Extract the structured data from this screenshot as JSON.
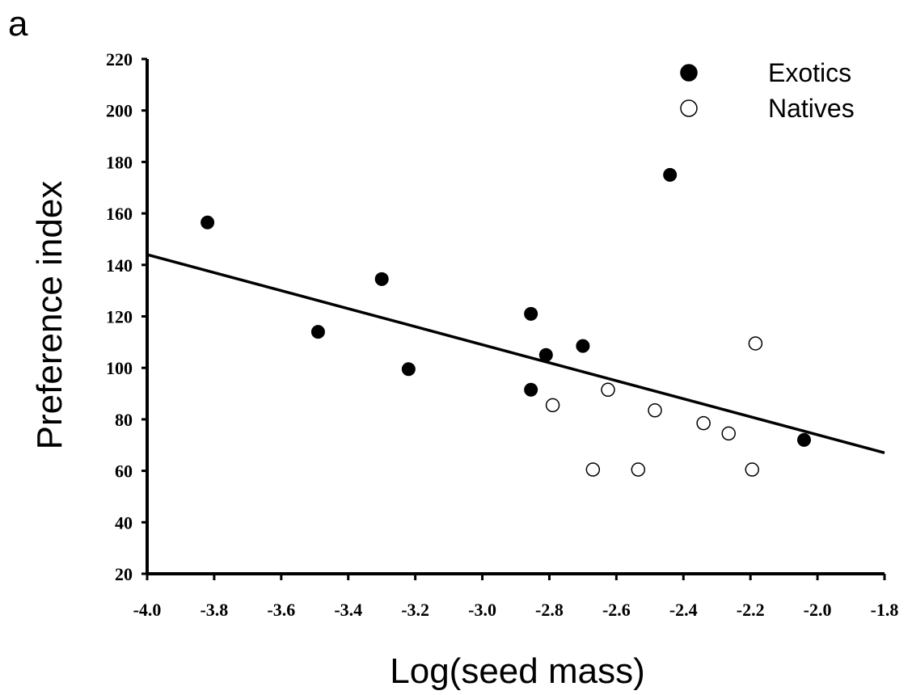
{
  "panel_label": "a",
  "chart_data": {
    "type": "scatter",
    "xlabel": "Log(seed mass)",
    "ylabel": "Preference index",
    "xlim": [
      -4.0,
      -1.8
    ],
    "ylim": [
      20,
      220
    ],
    "x_ticks": [
      "-4.0",
      "-3.8",
      "-3.6",
      "-3.4",
      "-3.2",
      "-3.0",
      "-2.8",
      "-2.6",
      "-2.4",
      "-2.2",
      "-2.0",
      "-1.8"
    ],
    "y_ticks": [
      "20",
      "40",
      "60",
      "80",
      "100",
      "120",
      "140",
      "160",
      "180",
      "200",
      "220"
    ],
    "legend": {
      "position": "top-right"
    },
    "series": [
      {
        "name": "Exotics",
        "marker": "filled-circle",
        "color": "#000000",
        "points": [
          {
            "x": -3.82,
            "y": 156.5
          },
          {
            "x": -3.49,
            "y": 114
          },
          {
            "x": -3.3,
            "y": 134.5
          },
          {
            "x": -3.22,
            "y": 99.5
          },
          {
            "x": -2.855,
            "y": 121
          },
          {
            "x": -2.855,
            "y": 91.5
          },
          {
            "x": -2.81,
            "y": 105
          },
          {
            "x": -2.7,
            "y": 108.5
          },
          {
            "x": -2.44,
            "y": 175
          },
          {
            "x": -2.04,
            "y": 72
          }
        ]
      },
      {
        "name": "Natives",
        "marker": "open-circle",
        "color": "#000000",
        "points": [
          {
            "x": -2.79,
            "y": 85.5
          },
          {
            "x": -2.67,
            "y": 60.5
          },
          {
            "x": -2.625,
            "y": 91.5
          },
          {
            "x": -2.535,
            "y": 60.5
          },
          {
            "x": -2.485,
            "y": 83.5
          },
          {
            "x": -2.34,
            "y": 78.5
          },
          {
            "x": -2.265,
            "y": 74.5
          },
          {
            "x": -2.195,
            "y": 60.5
          },
          {
            "x": -2.185,
            "y": 109.5
          }
        ]
      }
    ],
    "trendline": {
      "x": [
        -4.0,
        -1.8
      ],
      "y": [
        144,
        67
      ]
    }
  }
}
